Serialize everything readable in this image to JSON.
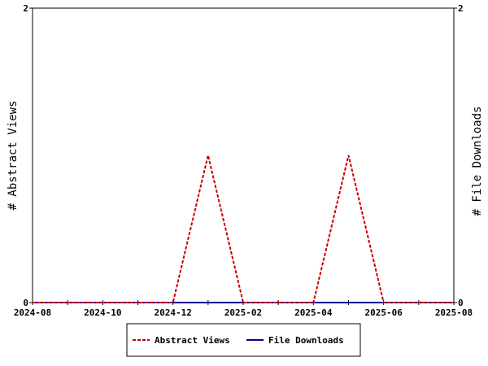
{
  "chart_data": {
    "type": "line",
    "x": [
      "2024-08",
      "2024-09",
      "2024-10",
      "2024-11",
      "2024-12",
      "2025-01",
      "2025-02",
      "2025-03",
      "2025-04",
      "2025-05",
      "2025-06",
      "2025-07",
      "2025-08"
    ],
    "x_tick_labels": [
      "2024-08",
      "2024-10",
      "2024-12",
      "2025-02",
      "2025-04",
      "2025-06",
      "2025-08"
    ],
    "xlim": [
      "2024-08",
      "2025-08"
    ],
    "y_left": {
      "label": "# Abstract Views",
      "ylim": [
        0,
        2
      ],
      "tick_labels": [
        "0",
        "2"
      ]
    },
    "y_right": {
      "label": "# File Downloads",
      "ylim": [
        0,
        2
      ],
      "tick_labels": [
        "0",
        "2"
      ]
    },
    "series": [
      {
        "name": "Abstract Views",
        "axis": "left",
        "color": "#cc0000",
        "style": "dashed",
        "values": [
          0,
          0,
          0,
          0,
          0,
          1,
          0,
          0,
          0,
          1,
          0,
          0,
          0
        ]
      },
      {
        "name": "File Downloads",
        "axis": "right",
        "color": "#000099",
        "style": "solid",
        "values": [
          0,
          0,
          0,
          0,
          0,
          0,
          0,
          0,
          0,
          0,
          0,
          0,
          0
        ]
      }
    ],
    "grid": false,
    "legend": "bottom-center"
  }
}
